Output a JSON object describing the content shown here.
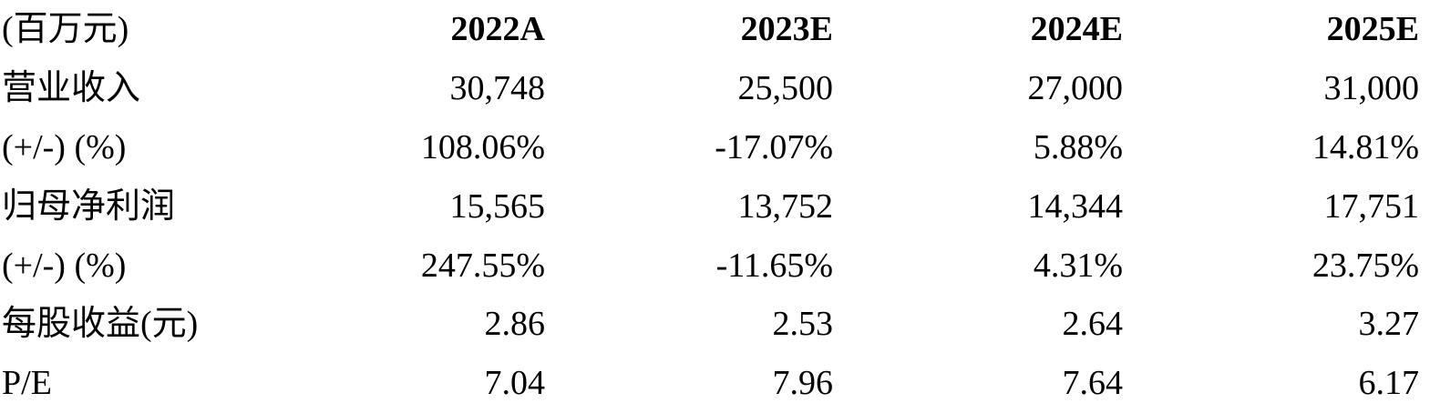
{
  "header": {
    "unit_label": "(百万元)",
    "years": [
      "2022A",
      "2023E",
      "2024E",
      "2025E"
    ]
  },
  "rows": [
    {
      "label": "营业收入",
      "values": [
        "30,748",
        "25,500",
        "27,000",
        "31,000"
      ]
    },
    {
      "label": "(+/-) (%)",
      "values": [
        "108.06%",
        "-17.07%",
        "5.88%",
        "14.81%"
      ]
    },
    {
      "label": "归母净利润",
      "values": [
        "15,565",
        "13,752",
        "14,344",
        "17,751"
      ]
    },
    {
      "label": "(+/-) (%)",
      "values": [
        "247.55%",
        "-11.65%",
        "4.31%",
        "23.75%"
      ]
    },
    {
      "label": "每股收益(元)",
      "values": [
        "2.86",
        "2.53",
        "2.64",
        "3.27"
      ]
    },
    {
      "label": "P/E",
      "values": [
        "7.04",
        "7.96",
        "7.64",
        "6.17"
      ]
    }
  ]
}
